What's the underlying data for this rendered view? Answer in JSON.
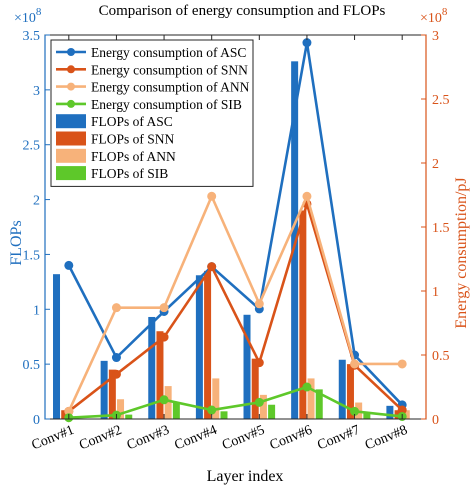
{
  "chart_data": {
    "type": "bar",
    "title": "Comparison of energy consumption and FLOPs",
    "xlabel": "Layer index",
    "ylabel_left": "FLOPs",
    "ylabel_right": "Energy consumption/pJ",
    "left_exponent": "×10",
    "left_exponent_power": "8",
    "right_exponent": "×10",
    "right_exponent_power": "8",
    "categories": [
      "Conv#1",
      "Conv#2",
      "Conv#3",
      "Conv#4",
      "Conv#5",
      "Conv#6",
      "Conv#7",
      "Conv#8"
    ],
    "ylim_left": [
      0,
      3.5
    ],
    "yticks_left": [
      "0",
      "0.5",
      "1",
      "1.5",
      "2",
      "2.5",
      "3",
      "3.5"
    ],
    "ylim_right": [
      0,
      3
    ],
    "yticks_right": [
      "0",
      "0.5",
      "1",
      "1.5",
      "2",
      "2.5",
      "3"
    ],
    "bar_series": [
      {
        "name": "FLOPs of ASC",
        "color": "#1f6fbf",
        "values": [
          1.32,
          0.53,
          0.93,
          1.31,
          0.95,
          3.26,
          0.54,
          0.12
        ]
      },
      {
        "name": "FLOPs of SNN",
        "color": "#d95319",
        "values": [
          0.08,
          0.45,
          0.8,
          1.35,
          0.55,
          1.9,
          0.5,
          0.08
        ]
      },
      {
        "name": "FLOPs of ANN",
        "color": "#f7b27a",
        "values": [
          0.0,
          0.18,
          0.3,
          0.37,
          0.22,
          0.37,
          0.15,
          0.08
        ]
      },
      {
        "name": "FLOPs of SIB",
        "color": "#5ec82a",
        "values": [
          0.0,
          0.04,
          0.15,
          0.07,
          0.13,
          0.27,
          0.06,
          0.0
        ]
      }
    ],
    "line_series": [
      {
        "name": "Energy consumption of ASC",
        "color": "#1f6fbf",
        "values": [
          1.2,
          0.48,
          0.84,
          1.19,
          0.86,
          2.94,
          0.5,
          0.11
        ]
      },
      {
        "name": "Energy consumption of SNN",
        "color": "#d95319",
        "values": [
          0.06,
          0.35,
          0.64,
          1.19,
          0.44,
          1.68,
          0.42,
          0.07
        ]
      },
      {
        "name": "Energy consumption of ANN",
        "color": "#f7b27a",
        "values": [
          0.06,
          0.87,
          0.87,
          1.74,
          0.9,
          1.74,
          0.43,
          0.43
        ]
      },
      {
        "name": "Energy consumption of SIB",
        "color": "#5ec82a",
        "values": [
          0.01,
          0.03,
          0.15,
          0.07,
          0.13,
          0.25,
          0.06,
          0.02
        ]
      }
    ],
    "left_axis_color": "#1f6fbf",
    "right_axis_color": "#d95319",
    "legend_placement": "top-left",
    "grid": false
  }
}
